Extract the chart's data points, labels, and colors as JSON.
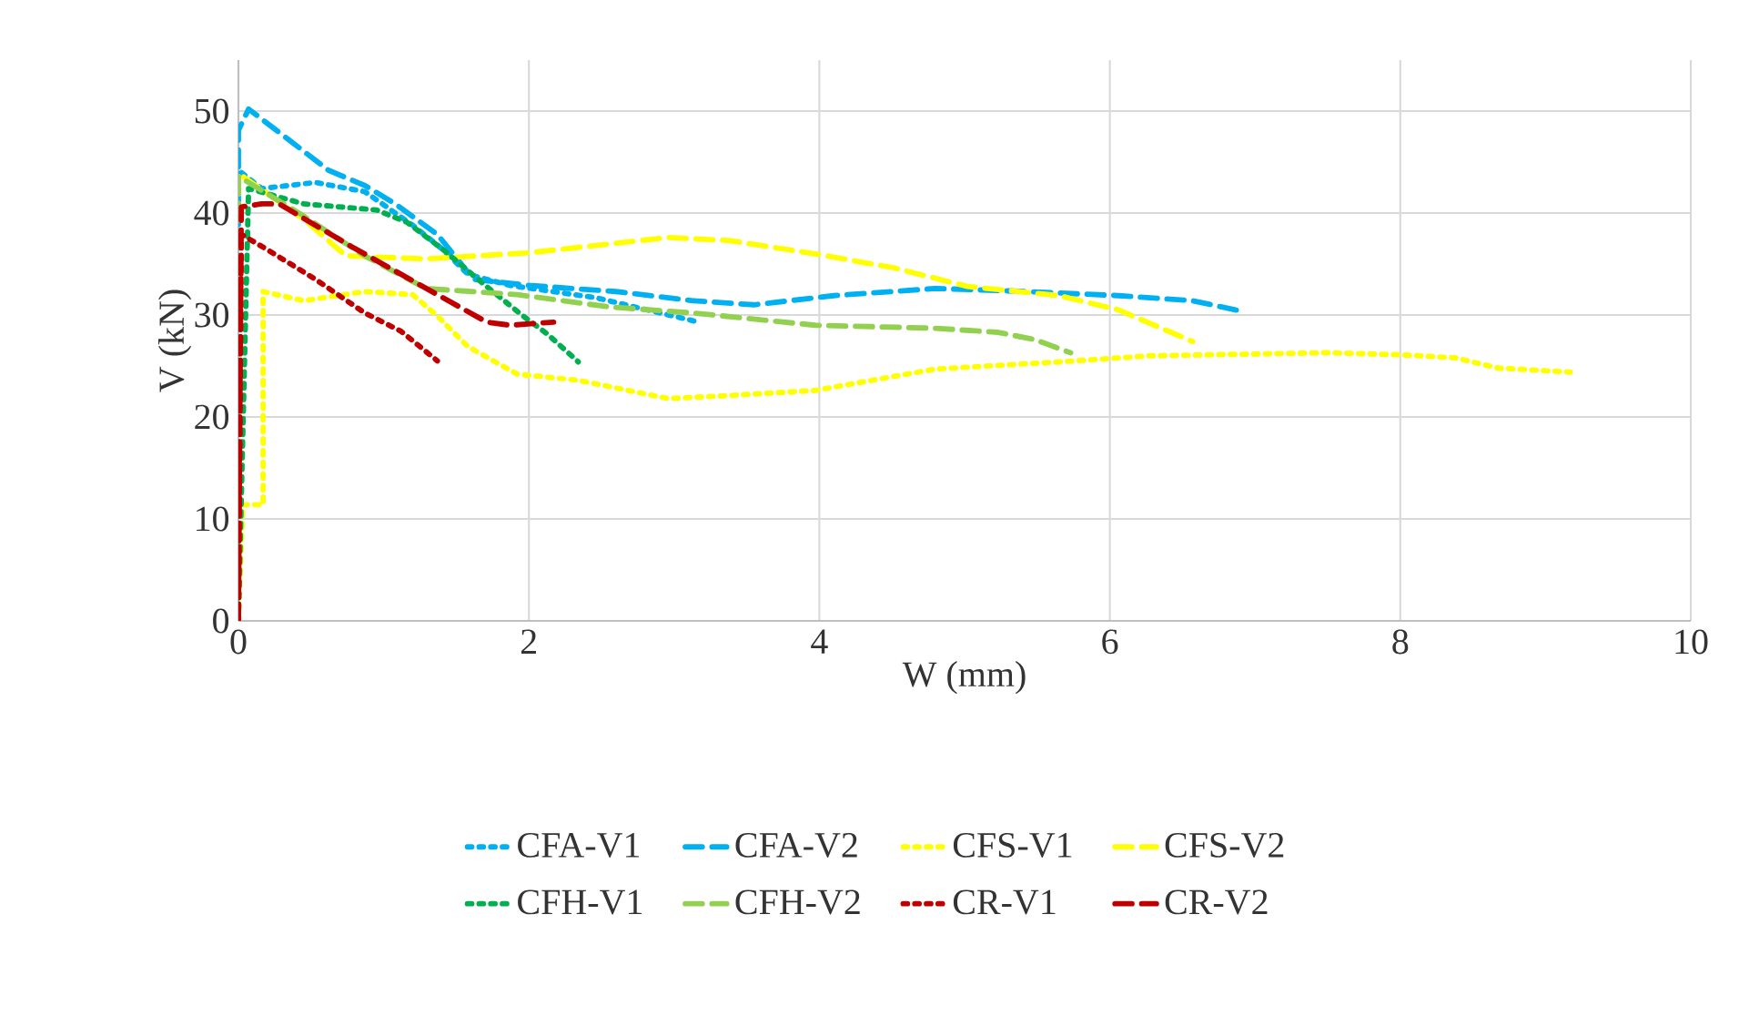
{
  "chart_data": {
    "type": "line",
    "xlabel": "W (mm)",
    "ylabel": "V (kN)",
    "xlim": [
      0,
      10
    ],
    "ylim": [
      0,
      55
    ],
    "xticks": [
      0,
      2,
      4,
      6,
      8,
      10
    ],
    "yticks": [
      0,
      10,
      20,
      30,
      40,
      50
    ],
    "grid": true,
    "legend": "bottom",
    "marker": "none",
    "series": [
      {
        "name": "CFA-V1",
        "color": "#00b0f0",
        "line_style": "dotted",
        "x": [
          0,
          0,
          0.16,
          0.53,
          0.87,
          1.2,
          1.41,
          1.58,
          1.87,
          2.46,
          3.17
        ],
        "values": [
          0,
          44.2,
          42.4,
          43.0,
          42.1,
          38.8,
          36.4,
          34.0,
          32.9,
          31.7,
          29.3
        ]
      },
      {
        "name": "CFA-V2",
        "color": "#00b0f0",
        "line_style": "dashed",
        "x": [
          0,
          0,
          0.07,
          0.62,
          0.87,
          1.08,
          1.37,
          1.62,
          2.0,
          2.6,
          3.13,
          3.55,
          4.1,
          4.8,
          5.43,
          6.06,
          6.57,
          6.93
        ],
        "values": [
          0,
          48.1,
          50.2,
          44.2,
          42.7,
          40.9,
          37.9,
          33.5,
          32.9,
          32.3,
          31.4,
          31.0,
          31.9,
          32.6,
          32.3,
          31.9,
          31.4,
          30.3
        ]
      },
      {
        "name": "CFS-V1",
        "color": "#ffff00",
        "line_style": "dotted",
        "x": [
          0,
          0.03,
          0.17,
          0.17,
          0.45,
          0.87,
          1.2,
          1.37,
          1.58,
          1.92,
          2.34,
          2.96,
          3.38,
          3.97,
          4.8,
          5.65,
          6.28,
          7.5,
          8.0,
          8.38,
          8.67,
          9.17
        ],
        "values": [
          0,
          11.4,
          11.4,
          32.3,
          31.4,
          32.3,
          32.0,
          29.9,
          26.9,
          24.2,
          23.6,
          21.8,
          22.1,
          22.6,
          24.7,
          25.4,
          26.0,
          26.3,
          26.1,
          25.8,
          24.8,
          24.4
        ]
      },
      {
        "name": "CFS-V2",
        "color": "#ffff00",
        "line_style": "dashed",
        "x": [
          0,
          0,
          0.45,
          0.74,
          1.29,
          2.0,
          2.96,
          3.38,
          3.97,
          4.52,
          5.02,
          5.65,
          6.06,
          6.57
        ],
        "values": [
          0,
          43.9,
          39.4,
          35.8,
          35.5,
          36.1,
          37.6,
          37.3,
          36.0,
          34.6,
          32.8,
          31.9,
          30.5,
          27.4
        ]
      },
      {
        "name": "CFH-V1",
        "color": "#00b050",
        "line_style": "dotted",
        "x": [
          0,
          0.07,
          0.45,
          0.95,
          1.16,
          1.41,
          1.7,
          1.96,
          2.13,
          2.34
        ],
        "values": [
          0,
          42.4,
          40.9,
          40.3,
          39.1,
          36.4,
          32.9,
          29.9,
          28.1,
          25.4
        ]
      },
      {
        "name": "CFH-V2",
        "color": "#92d050",
        "line_style": "dashed",
        "x": [
          0,
          0,
          0.45,
          0.87,
          1.29,
          1.92,
          2.55,
          3.13,
          3.97,
          4.8,
          5.23,
          5.48,
          5.73
        ],
        "values": [
          0,
          43.6,
          39.7,
          35.8,
          32.6,
          32.0,
          30.8,
          30.2,
          29.0,
          28.7,
          28.3,
          27.6,
          26.3
        ]
      },
      {
        "name": "CR-V1",
        "color": "#c00000",
        "line_style": "dotted",
        "x": [
          0,
          0.02,
          0.2,
          0.53,
          0.87,
          1.12,
          1.37
        ],
        "values": [
          0,
          37.9,
          36.4,
          33.5,
          30.2,
          28.4,
          25.5
        ]
      },
      {
        "name": "CR-V2",
        "color": "#c00000",
        "line_style": "dashed",
        "x": [
          0,
          0.02,
          0.16,
          0.28,
          0.78,
          1.37,
          1.71,
          1.87,
          2.17
        ],
        "values": [
          0,
          40.6,
          40.9,
          40.9,
          36.7,
          32.0,
          29.3,
          29.0,
          29.3
        ]
      }
    ]
  }
}
